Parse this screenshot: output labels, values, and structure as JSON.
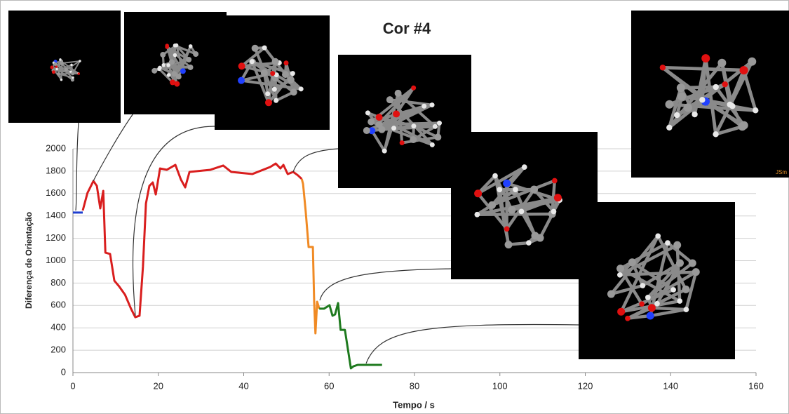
{
  "chart_data": {
    "type": "line",
    "title": "Cor #4",
    "xlabel": "Tempo / s",
    "ylabel": "Diferença de Orientação",
    "watermark": "JSm",
    "xlim": [
      0,
      160
    ],
    "xticks": [
      0,
      20,
      40,
      60,
      80,
      100,
      120,
      140,
      160
    ],
    "ylim": [
      0,
      2000
    ],
    "yticks": [
      0,
      200,
      400,
      600,
      800,
      1000,
      1200,
      1400,
      1600,
      1800,
      2000
    ],
    "grid": true,
    "series": [
      {
        "color": "#1f3fd0",
        "x": [
          0,
          2.3
        ],
        "values": [
          1430,
          1430
        ]
      },
      {
        "color": "#d91e1e",
        "x": [
          2.3,
          3.4,
          4.8,
          5.6,
          6.4,
          7.1,
          7.6,
          8.7,
          9.7,
          10.8,
          12.2,
          13.6,
          14.6,
          15.6,
          16.4,
          17.1,
          17.9,
          18.7,
          19.4,
          20.4,
          22,
          24,
          25.3,
          26.3,
          27.3,
          32.2,
          35.2,
          37.1,
          42,
          46.2,
          47.5,
          48.6,
          49.3,
          50.3,
          51.6,
          52.7,
          53.6
        ],
        "values": [
          1448,
          1605,
          1712,
          1668,
          1467,
          1624,
          1072,
          1060,
          821,
          771,
          696,
          571,
          495,
          508,
          947,
          1511,
          1668,
          1699,
          1592,
          1824,
          1812,
          1856,
          1724,
          1655,
          1793,
          1812,
          1850,
          1793,
          1774,
          1837,
          1868,
          1824,
          1856,
          1774,
          1793,
          1762,
          1730
        ]
      },
      {
        "color": "#f08a24",
        "x": [
          53.6,
          53.9,
          54.5,
          55.2,
          56.2,
          56.5,
          56.8,
          57.2,
          57.7
        ],
        "values": [
          1730,
          1686,
          1448,
          1122,
          1122,
          633,
          351,
          633,
          571
        ]
      },
      {
        "color": "#1e7a1e",
        "x": [
          57.7,
          58.8,
          60.1,
          60.8,
          61.4,
          62.1,
          62.7,
          63.7,
          65.1,
          65.7,
          66.7,
          72.4
        ],
        "values": [
          571,
          571,
          602,
          508,
          520,
          621,
          382,
          382,
          38,
          56,
          69,
          69
        ]
      }
    ]
  }
}
